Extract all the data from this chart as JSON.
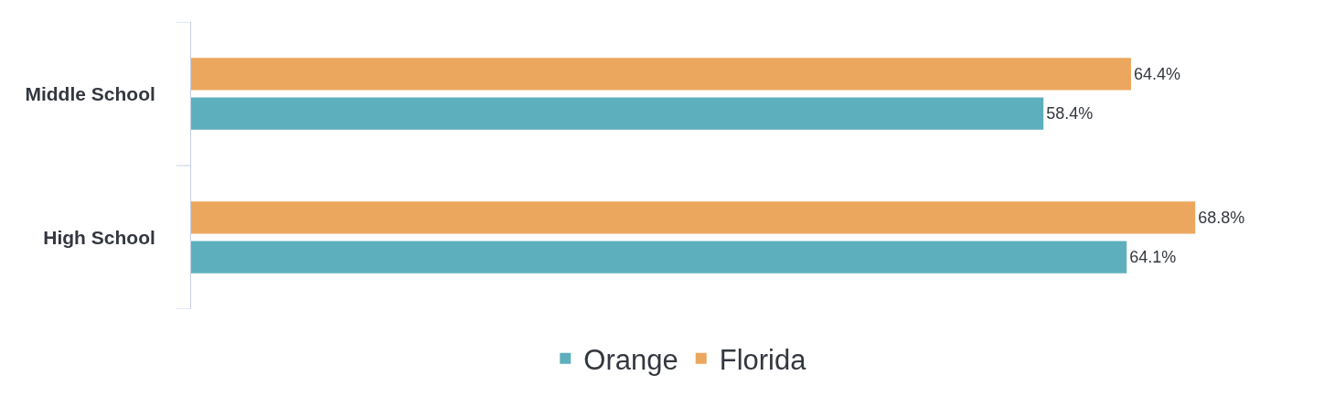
{
  "chart_data": {
    "type": "bar",
    "orientation": "horizontal",
    "categories": [
      "Middle School",
      "High School"
    ],
    "series": [
      {
        "name": "Orange",
        "color": "#5eafbd",
        "values": [
          58.4,
          64.1
        ],
        "value_labels": [
          "58.4%",
          "64.1%"
        ]
      },
      {
        "name": "Florida",
        "color": "#eca75e",
        "values": [
          64.4,
          68.8
        ],
        "value_labels": [
          "64.4%",
          "68.8%"
        ]
      }
    ],
    "tick_labels": "y",
    "legend": "bottom"
  }
}
